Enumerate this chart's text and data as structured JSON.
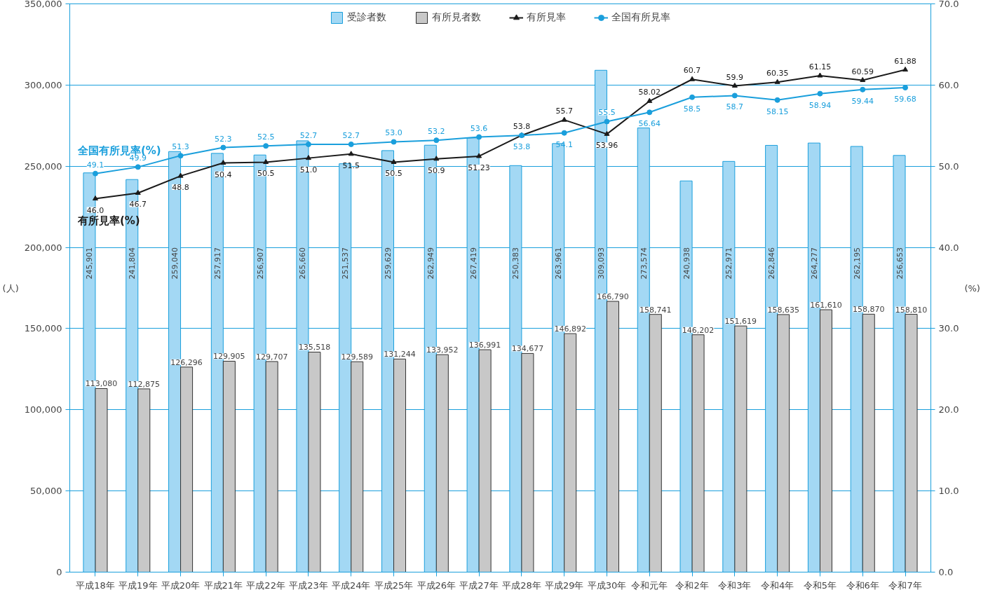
{
  "chart_data": {
    "type": "bar",
    "categories": [
      "平成18年",
      "平成19年",
      "平成20年",
      "平成21年",
      "平成22年",
      "平成23年",
      "平成24年",
      "平成25年",
      "平成26年",
      "平成27年",
      "平成28年",
      "平成29年",
      "平成30年",
      "令和元年",
      "令和2年",
      "令和3年",
      "令和4年",
      "令和5年",
      "令和6年",
      "令和7年"
    ],
    "series": [
      {
        "name": "受診者数",
        "color": "#a3d8f4",
        "values": [
          245901,
          241804,
          259040,
          257917,
          256907,
          265660,
          251537,
          259629,
          262949,
          267419,
          250383,
          263961,
          309093,
          273574,
          240938,
          252971,
          262846,
          264277,
          262195,
          256653
        ],
        "value_labels": [
          "245,901",
          "241,804",
          "259,040",
          "257,917",
          "256,907",
          "265,660",
          "251,537",
          "259,629",
          "262,949",
          "267,419",
          "250,383",
          "263,961",
          "309,093",
          "273,574",
          "240,938",
          "252,971",
          "262,846",
          "264,277",
          "262,195",
          "256,653"
        ]
      },
      {
        "name": "有所見者数",
        "color": "#c8c8c8",
        "values": [
          113080,
          112875,
          126296,
          129905,
          129707,
          135518,
          129589,
          131244,
          133952,
          136991,
          134677,
          146892,
          166790,
          158741,
          146202,
          151619,
          158635,
          161610,
          158870,
          158810
        ],
        "value_labels": [
          "113,080",
          "112,875",
          "126,296",
          "129,905",
          "129,707",
          "135,518",
          "129,589",
          "131,244",
          "133,952",
          "136,991",
          "134,677",
          "146,892",
          "166,790",
          "158,741",
          "146,202",
          "151,619",
          "158,635",
          "161,610",
          "158,870",
          "158,810"
        ]
      },
      {
        "name": "有所見率",
        "type": "line",
        "axis": "y2",
        "marker": "triangle",
        "color": "#1a1a1a",
        "values": [
          46.0,
          46.7,
          48.8,
          50.4,
          50.5,
          51.0,
          51.5,
          50.5,
          50.9,
          51.23,
          53.8,
          55.7,
          53.96,
          58.02,
          60.7,
          59.9,
          60.35,
          61.15,
          60.59,
          61.88
        ],
        "value_labels": [
          "46.0",
          "46.7",
          "48.8",
          "50.4",
          "50.5",
          "51.0",
          "51.5",
          "50.5",
          "50.9",
          "51.23",
          "53.8",
          "55.7",
          "53.96",
          "58.02",
          "60.7",
          "59.9",
          "60.35",
          "61.15",
          "60.59",
          "61.88"
        ]
      },
      {
        "name": "全国有所見率",
        "type": "line",
        "axis": "y2",
        "marker": "circle",
        "color": "#1a9fdc",
        "values": [
          49.1,
          49.9,
          51.3,
          52.3,
          52.5,
          52.7,
          52.7,
          53.0,
          53.2,
          53.6,
          53.8,
          54.1,
          55.5,
          56.64,
          58.5,
          58.7,
          58.15,
          58.94,
          59.44,
          59.68
        ],
        "value_labels": [
          "49.1",
          "49.9",
          "51.3",
          "52.3",
          "52.5",
          "52.7",
          "52.7",
          "53.0",
          "53.2",
          "53.6",
          "53.8",
          "54.1",
          "55.5",
          "56.64",
          "58.5",
          "58.7",
          "58.15",
          "58.94",
          "59.44",
          "59.68"
        ]
      }
    ],
    "ylim": [
      0,
      350000
    ],
    "yticks": [
      0,
      {
        "value": 50000,
        "label": "50,000"
      },
      {
        "value": 100000,
        "label": "100,000"
      },
      {
        "value": 150000,
        "label": "150,000"
      },
      {
        "value": 200000,
        "label": "200,000"
      },
      {
        "value": 250000,
        "label": "250,000"
      },
      {
        "value": 300000,
        "label": "300,000"
      },
      {
        "value": 350000,
        "label": "350,000"
      }
    ],
    "y2lim": [
      0,
      70
    ],
    "y2ticks": [
      {
        "value": 0,
        "label": "0.0"
      },
      {
        "value": 10,
        "label": "10.0"
      },
      {
        "value": 20,
        "label": "20.0"
      },
      {
        "value": 30,
        "label": "30.0"
      },
      {
        "value": 40,
        "label": "40.0"
      },
      {
        "value": 50,
        "label": "50.0"
      },
      {
        "value": 60,
        "label": "60.0"
      },
      {
        "value": 70,
        "label": "70.0"
      }
    ],
    "ylabel": "(人)",
    "y2label": "(%)",
    "annotations": [
      "有所見率(%)",
      "全国有所見率(%)"
    ],
    "grid": "y",
    "legend": "top"
  }
}
